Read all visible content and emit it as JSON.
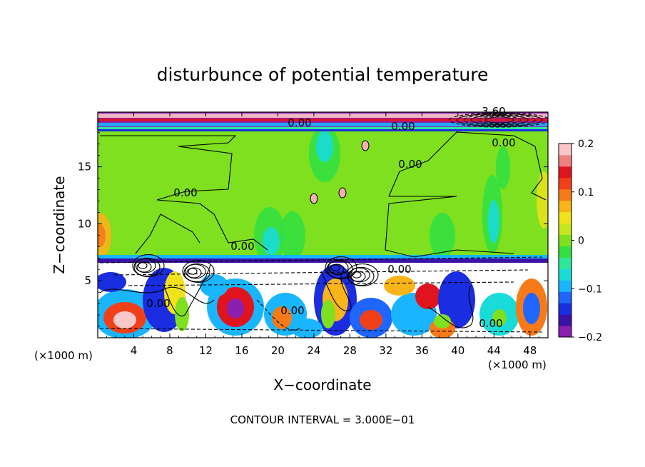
{
  "chart_data": {
    "type": "heatmap",
    "title": "disturbunce of potential temperature",
    "xlabel": "X−coordinate",
    "ylabel": "Z−coordinate",
    "x_unit_label": "(×1000 m)",
    "x_unit_label_right": "(×1000 m)",
    "xlim": [
      0,
      50
    ],
    "ylim": [
      0,
      19.8
    ],
    "x_ticks": [
      4,
      8,
      12,
      16,
      20,
      24,
      28,
      32,
      36,
      40,
      44,
      48
    ],
    "y_ticks": [
      5,
      10,
      15
    ],
    "colorbar": {
      "range": [
        -0.2,
        0.2
      ],
      "tick_labels": [
        "0.2",
        "0.1",
        "0",
        "−0.1",
        "−0.2"
      ],
      "tick_values": [
        0.2,
        0.1,
        0,
        -0.1,
        -0.2
      ],
      "colors": [
        "#8a1fb0",
        "#3a12a8",
        "#1a2de0",
        "#1f66ff",
        "#19b6ff",
        "#19dcd8",
        "#2ee89a",
        "#34e040",
        "#7ee01e",
        "#c8e61e",
        "#f2e21c",
        "#f9b41a",
        "#f77a18",
        "#f0401a",
        "#e0141e",
        "#f08080",
        "#f8c8c8"
      ]
    },
    "contour_labels": [
      "0.00",
      "0.00",
      "0.00",
      "0.00",
      "0.00",
      "0.00",
      "0.00",
      "0.00",
      "0.00",
      "0.00",
      "3.60"
    ],
    "footer_text": "CONTOUR INTERVAL = 3.000E−01",
    "background_value": 0.01
  }
}
